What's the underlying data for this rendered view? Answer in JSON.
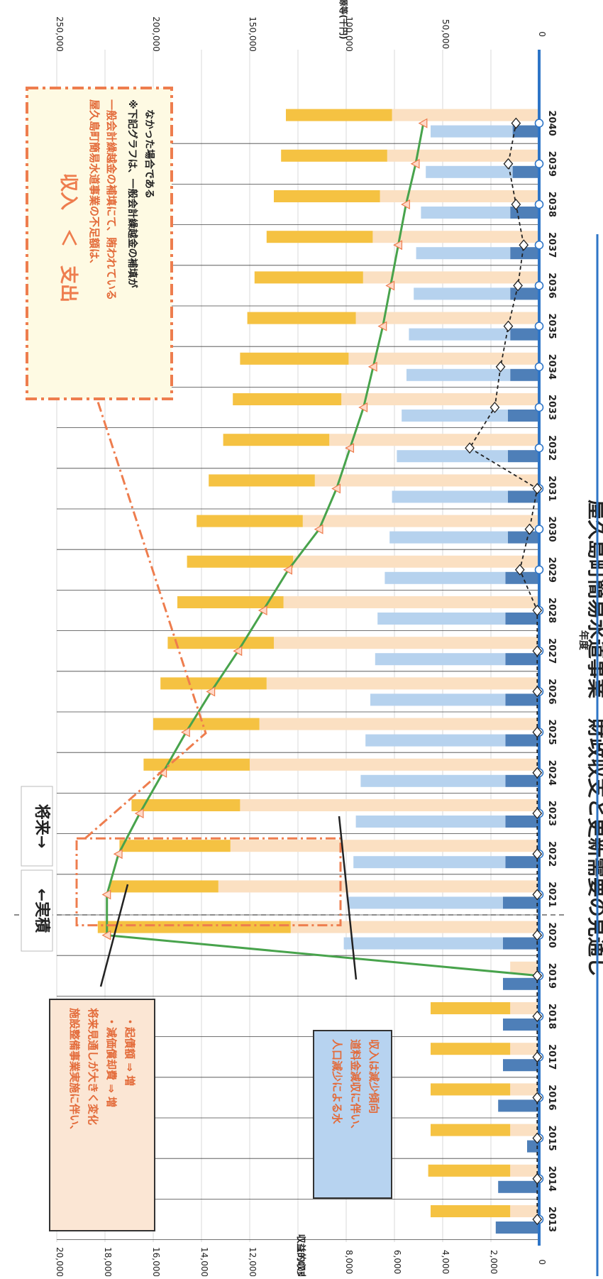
{
  "chart_data": {
    "type": "bar",
    "orientation": "rotated-90",
    "title": "屋久島町簡易水道事業　財政収支と更新需要の見通し",
    "xlabel": "年度",
    "ylabel_left": "収益的収支(千円)",
    "ylabel_right": "補填財源等(千円)",
    "ylim_left": [
      0,
      20000
    ],
    "ylim_right": [
      0,
      250000
    ],
    "left_ticks": [
      "0",
      "2,000",
      "4,000",
      "6,000",
      "8,000",
      "10,000",
      "12,000",
      "14,000",
      "16,000",
      "18,000",
      "20,000"
    ],
    "right_ticks": [
      "0",
      "50,000",
      "100,000",
      "150,000",
      "200,000",
      "250,000"
    ],
    "categories": [
      "2013",
      "2014",
      "2015",
      "2016",
      "2017",
      "2018",
      "2019",
      "2020",
      "2021",
      "2022",
      "2023",
      "2024",
      "2025",
      "2026",
      "2027",
      "2028",
      "2029",
      "2030",
      "2031",
      "2032",
      "2033",
      "2034",
      "2035",
      "2036",
      "2037",
      "2038",
      "2039",
      "2040"
    ],
    "series": [
      {
        "stack": "revenue",
        "part": "dark",
        "color": "#4e7fb8",
        "values": [
          1800,
          1700,
          500,
          1700,
          1500,
          1500,
          1500,
          1500,
          1500,
          1400,
          1400,
          1400,
          1400,
          1400,
          1400,
          1400,
          1400,
          1300,
          1300,
          1300,
          1300,
          1200,
          1200,
          1200,
          1200,
          1200,
          1100,
          1100
        ]
      },
      {
        "stack": "revenue",
        "part": "light",
        "color": "#b6d2ee",
        "values": [
          0,
          0,
          0,
          0,
          0,
          0,
          0,
          6600,
          6400,
          6300,
          6200,
          6000,
          5800,
          5600,
          5400,
          5300,
          5000,
          4900,
          4800,
          4600,
          4400,
          4300,
          4200,
          4000,
          3900,
          3700,
          3600,
          3400
        ]
      },
      {
        "stack": "expense",
        "part": "pale",
        "color": "#fbe0c2",
        "values": [
          1200,
          1200,
          1200,
          1200,
          1200,
          1200,
          1200,
          10300,
          13300,
          12800,
          12400,
          12000,
          11600,
          11300,
          11000,
          10600,
          10200,
          9800,
          9300,
          8700,
          8200,
          7900,
          7600,
          7300,
          6900,
          6600,
          6300,
          6100
        ]
      },
      {
        "stack": "expense",
        "part": "gold",
        "color": "#f5c242",
        "values": [
          3300,
          3400,
          3300,
          3300,
          3300,
          3300,
          0,
          8000,
          4500,
          4600,
          4500,
          4400,
          4400,
          4400,
          4400,
          4400,
          4400,
          4400,
          4400,
          4400,
          4500,
          4500,
          4500,
          4500,
          4400,
          4400,
          4400,
          4400
        ]
      }
    ],
    "line_green": {
      "color": "#48a34c",
      "axis": "right",
      "values": [
        null,
        null,
        null,
        null,
        null,
        null,
        0,
        224000,
        224000,
        218000,
        207000,
        195000,
        183000,
        170000,
        156000,
        143000,
        130000,
        114000,
        105000,
        98000,
        91000,
        86000,
        81000,
        77000,
        73000,
        69000,
        64000,
        60000
      ]
    },
    "line_dashed": {
      "color": "#222222",
      "axis": "right",
      "values": [
        1000,
        1000,
        1000,
        1000,
        1000,
        1000,
        1000,
        1000,
        1000,
        1000,
        1000,
        1000,
        1000,
        1000,
        1000,
        1000,
        10000,
        5000,
        1000,
        36000,
        23000,
        20000,
        16000,
        11000,
        8000,
        12000,
        16000,
        12000
      ]
    }
  },
  "labels": {
    "actual": "←実積",
    "future": "将来→",
    "box1": [
      "施設整備事業実施に伴い、",
      "将来見通しが大きく変化",
      "・減価償却費 ⇒ 増",
      "・起債額 ⇒ 増"
    ],
    "box2": [
      "人口減少による水",
      "道料金減収に伴い、",
      "収入は減少傾向"
    ],
    "big_title": "収入　＜　支出",
    "big_lines": [
      "屋久島町簡易水道事業の不足額は、",
      "一般会計繰越金の補填にて、賄われている",
      "※下記グラフは、一般会計繰越金の補填が",
      "なかった場合である"
    ]
  },
  "colors": {
    "axis_blue": "#2e75c7",
    "orange_dash": "#ee7d4e",
    "box2_fill": "#b7d3f0",
    "box1_fill": "#fbe6d4",
    "big_fill": "#fefae3"
  }
}
